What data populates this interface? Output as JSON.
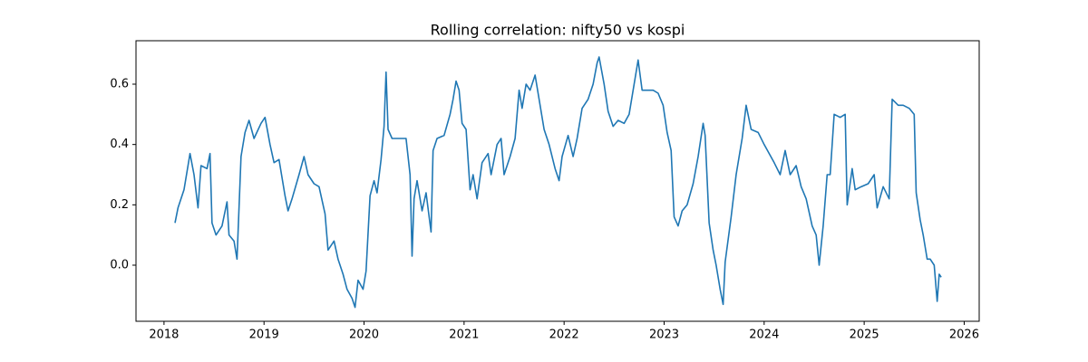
{
  "chart_data": {
    "type": "line",
    "title": "Rolling correlation: nifty50 vs kospi",
    "color": "#1f77b4",
    "x": [
      2018.11,
      2018.14,
      2018.2,
      2018.24,
      2018.26,
      2018.3,
      2018.34,
      2018.37,
      2018.43,
      2018.46,
      2018.48,
      2018.52,
      2018.58,
      2018.63,
      2018.65,
      2018.7,
      2018.73,
      2018.77,
      2018.81,
      2018.85,
      2018.9,
      2018.97,
      2019.01,
      2019.06,
      2019.1,
      2019.15,
      2019.21,
      2019.24,
      2019.28,
      2019.35,
      2019.4,
      2019.44,
      2019.5,
      2019.55,
      2019.61,
      2019.64,
      2019.7,
      2019.74,
      2019.79,
      2019.83,
      2019.88,
      2019.91,
      2019.94,
      2019.99,
      2020.02,
      2020.06,
      2020.1,
      2020.13,
      2020.17,
      2020.2,
      2020.22,
      2020.24,
      2020.28,
      2020.35,
      2020.42,
      2020.46,
      2020.48,
      2020.5,
      2020.53,
      2020.58,
      2020.62,
      2020.67,
      2020.69,
      2020.73,
      2020.8,
      2020.86,
      2020.89,
      2020.92,
      2020.95,
      2020.98,
      2021.02,
      2021.06,
      2021.09,
      2021.13,
      2021.18,
      2021.24,
      2021.27,
      2021.33,
      2021.37,
      2021.4,
      2021.46,
      2021.51,
      2021.55,
      2021.58,
      2021.62,
      2021.66,
      2021.71,
      2021.75,
      2021.8,
      2021.85,
      2021.91,
      2021.95,
      2021.98,
      2022.04,
      2022.09,
      2022.13,
      2022.18,
      2022.24,
      2022.29,
      2022.33,
      2022.35,
      2022.4,
      2022.44,
      2022.49,
      2022.54,
      2022.6,
      2022.65,
      2022.71,
      2022.74,
      2022.78,
      2022.83,
      2022.89,
      2022.94,
      2022.99,
      2023.03,
      2023.07,
      2023.1,
      2023.14,
      2023.18,
      2023.23,
      2023.29,
      2023.34,
      2023.39,
      2023.41,
      2023.45,
      2023.49,
      2023.52,
      2023.56,
      2023.59,
      2023.61,
      2023.67,
      2023.72,
      2023.78,
      2023.82,
      2023.87,
      2023.94,
      2024.0,
      2024.05,
      2024.1,
      2024.16,
      2024.21,
      2024.26,
      2024.32,
      2024.37,
      2024.42,
      2024.48,
      2024.52,
      2024.55,
      2024.59,
      2024.63,
      2024.66,
      2024.7,
      2024.76,
      2024.81,
      2024.83,
      2024.88,
      2024.91,
      2024.97,
      2025.04,
      2025.1,
      2025.13,
      2025.19,
      2025.25,
      2025.28,
      2025.34,
      2025.39,
      2025.45,
      2025.5,
      2025.52,
      2025.56,
      2025.59,
      2025.63,
      2025.66,
      2025.7,
      2025.73,
      2025.75,
      2025.77
    ],
    "values": [
      0.14,
      0.19,
      0.25,
      0.33,
      0.37,
      0.3,
      0.19,
      0.33,
      0.32,
      0.37,
      0.14,
      0.1,
      0.13,
      0.21,
      0.1,
      0.08,
      0.02,
      0.36,
      0.44,
      0.48,
      0.42,
      0.47,
      0.49,
      0.4,
      0.34,
      0.35,
      0.23,
      0.18,
      0.22,
      0.3,
      0.36,
      0.3,
      0.27,
      0.26,
      0.17,
      0.05,
      0.08,
      0.02,
      -0.03,
      -0.08,
      -0.11,
      -0.14,
      -0.05,
      -0.08,
      -0.02,
      0.23,
      0.28,
      0.24,
      0.35,
      0.46,
      0.64,
      0.45,
      0.42,
      0.42,
      0.42,
      0.3,
      0.03,
      0.22,
      0.28,
      0.18,
      0.24,
      0.11,
      0.38,
      0.42,
      0.43,
      0.5,
      0.55,
      0.61,
      0.58,
      0.47,
      0.45,
      0.25,
      0.3,
      0.22,
      0.34,
      0.37,
      0.3,
      0.4,
      0.42,
      0.3,
      0.36,
      0.42,
      0.58,
      0.52,
      0.6,
      0.58,
      0.63,
      0.55,
      0.45,
      0.4,
      0.32,
      0.28,
      0.36,
      0.43,
      0.36,
      0.42,
      0.52,
      0.55,
      0.6,
      0.67,
      0.69,
      0.6,
      0.51,
      0.46,
      0.48,
      0.47,
      0.5,
      0.62,
      0.68,
      0.58,
      0.58,
      0.58,
      0.57,
      0.53,
      0.44,
      0.38,
      0.16,
      0.13,
      0.18,
      0.2,
      0.27,
      0.36,
      0.47,
      0.43,
      0.14,
      0.05,
      0.0,
      -0.08,
      -0.13,
      0.01,
      0.16,
      0.3,
      0.42,
      0.53,
      0.45,
      0.44,
      0.4,
      0.37,
      0.34,
      0.3,
      0.38,
      0.3,
      0.33,
      0.26,
      0.22,
      0.13,
      0.1,
      0.0,
      0.13,
      0.3,
      0.3,
      0.5,
      0.49,
      0.5,
      0.2,
      0.32,
      0.25,
      0.26,
      0.27,
      0.3,
      0.19,
      0.26,
      0.22,
      0.55,
      0.53,
      0.53,
      0.52,
      0.5,
      0.24,
      0.15,
      0.1,
      0.02,
      0.02,
      0.0,
      -0.12,
      -0.03,
      -0.04
    ],
    "xlim": [
      2017.72,
      2026.15
    ],
    "xticks": [
      2018,
      2019,
      2020,
      2021,
      2022,
      2023,
      2024,
      2025,
      2026
    ],
    "ylim": [
      -0.186,
      0.744
    ],
    "yticks": [
      {
        "value": 0,
        "label": "0.0"
      },
      0.2,
      0.4,
      0.6
    ]
  }
}
